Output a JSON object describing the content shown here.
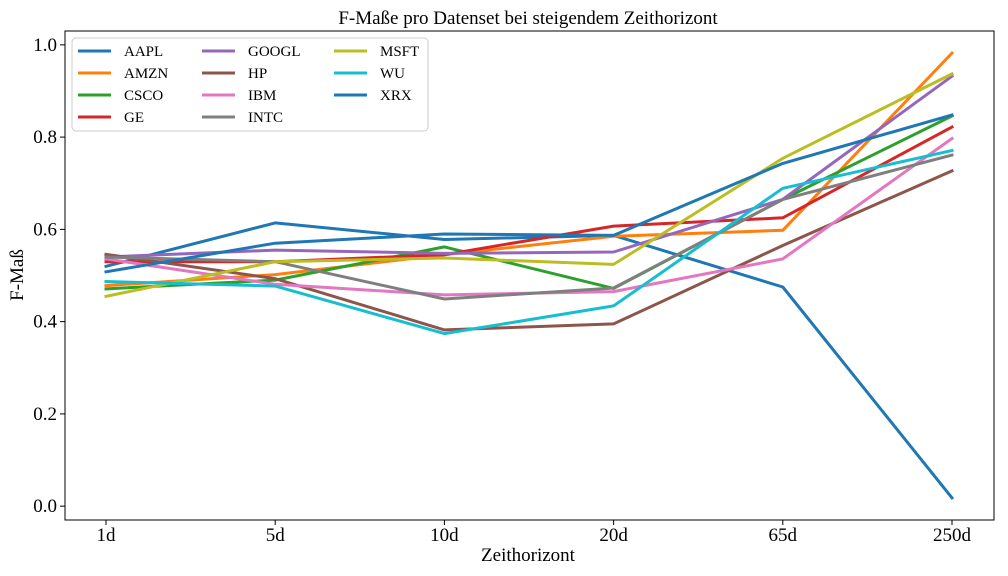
{
  "chart_data": {
    "type": "line",
    "title": "F-Maße pro Datenset bei steigendem Zeithorizont",
    "xlabel": "Zeithorizont",
    "ylabel": "F-Maß",
    "categories": [
      "1d",
      "5d",
      "10d",
      "20d",
      "65d",
      "250d"
    ],
    "ylim": [
      -0.03,
      1.03
    ],
    "yticks": [
      0.0,
      0.2,
      0.4,
      0.6,
      0.8,
      1.0
    ],
    "ytick_labels": [
      "0.0",
      "0.2",
      "0.4",
      "0.6",
      "0.8",
      "1.0"
    ],
    "grid": false,
    "legend_position": "top-left",
    "series": [
      {
        "name": "AAPL",
        "color": "#1f77b4",
        "values": [
          0.52,
          0.614,
          0.578,
          0.587,
          0.475,
          0.018
        ]
      },
      {
        "name": "AMZN",
        "color": "#ff7f0e",
        "values": [
          0.478,
          0.502,
          0.545,
          0.585,
          0.598,
          0.982
        ]
      },
      {
        "name": "CSCO",
        "color": "#2ca02c",
        "values": [
          0.471,
          0.49,
          0.562,
          0.472,
          0.665,
          0.846
        ]
      },
      {
        "name": "GE",
        "color": "#d62728",
        "values": [
          0.53,
          0.53,
          0.545,
          0.607,
          0.625,
          0.822
        ]
      },
      {
        "name": "GOOGL",
        "color": "#9467bd",
        "values": [
          0.54,
          0.555,
          0.548,
          0.551,
          0.665,
          0.932
        ]
      },
      {
        "name": "HP",
        "color": "#8c564b",
        "values": [
          0.546,
          0.493,
          0.382,
          0.395,
          0.565,
          0.727
        ]
      },
      {
        "name": "IBM",
        "color": "#e377c2",
        "values": [
          0.536,
          0.481,
          0.458,
          0.465,
          0.536,
          0.797
        ]
      },
      {
        "name": "INTC",
        "color": "#7f7f7f",
        "values": [
          0.54,
          0.53,
          0.449,
          0.473,
          0.665,
          0.761
        ]
      },
      {
        "name": "MSFT",
        "color": "#bcbd22",
        "values": [
          0.455,
          0.53,
          0.538,
          0.524,
          0.754,
          0.937
        ]
      },
      {
        "name": "WU",
        "color": "#17becf",
        "values": [
          0.487,
          0.477,
          0.374,
          0.434,
          0.689,
          0.771
        ]
      },
      {
        "name": "XRX",
        "color": "#1f77b4",
        "values": [
          0.508,
          0.57,
          0.59,
          0.587,
          0.743,
          0.848
        ]
      }
    ]
  }
}
